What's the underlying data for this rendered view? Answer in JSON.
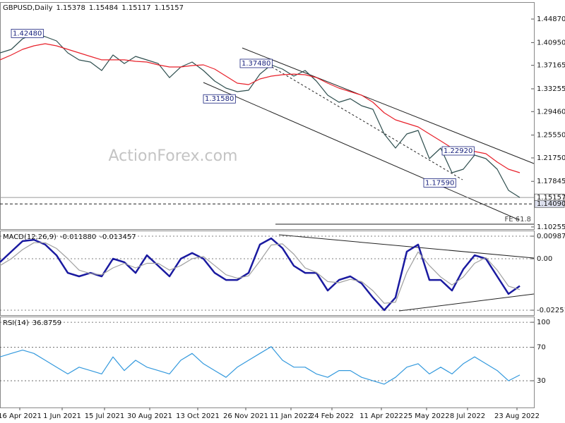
{
  "chart_data": [
    {
      "type": "line",
      "title": "GBPUSD,Daily",
      "ohlc": [
        {
          "value": 1.15378,
          "label": "1.15378"
        },
        {
          "value": 1.15484,
          "label": "1.15484"
        },
        {
          "value": 1.15117,
          "label": "1.15117"
        },
        {
          "value": 1.15157,
          "label": "1.15157"
        }
      ],
      "watermark": "ActionForex.com",
      "x": [
        0,
        8,
        16,
        24,
        32,
        40,
        48,
        56,
        64,
        72,
        80,
        88,
        96,
        104,
        112,
        120,
        128,
        136,
        144,
        152,
        160,
        168,
        176,
        184,
        192,
        200,
        208,
        216,
        224,
        232,
        240,
        248,
        256,
        264,
        272,
        280,
        288,
        296,
        304,
        312,
        320,
        328,
        336,
        344,
        352,
        360,
        368
      ],
      "xlim": [
        0,
        378
      ],
      "ylim": [
        1.0989,
        1.4769
      ],
      "yticks": [
        {
          "value": 1.4487,
          "label": "1.44870"
        },
        {
          "value": 1.4095,
          "label": "1.40950"
        },
        1.37165,
        1.33255,
        {
          "value": 1.2946,
          "label": "1.29460"
        },
        {
          "value": 1.2555,
          "label": "1.25550"
        },
        {
          "value": 1.2175,
          "label": "1.21750"
        },
        1.17845,
        1.10255
      ],
      "series": [
        {
          "color": "#2f4f4f",
          "values": [
            1.3924,
            1.3983,
            1.4158,
            1.4241,
            1.4194,
            1.4123,
            1.3924,
            1.3806,
            1.3771,
            1.363,
            1.3888,
            1.3747,
            1.3865,
            1.3806,
            1.3747,
            1.3512,
            1.3689,
            1.3771,
            1.363,
            1.3454,
            1.3337,
            1.3278,
            1.3302,
            1.3571,
            1.3724,
            1.3654,
            1.3536,
            1.363,
            1.3454,
            1.3219,
            1.3102,
            1.3161,
            1.3043,
            1.2985,
            1.2574,
            1.2339,
            1.2574,
            1.2632,
            1.2163,
            1.2339,
            1.1928,
            1.1987,
            1.2222,
            1.2163,
            1.1987,
            1.1635,
            1.1516
          ]
        },
        {
          "color": "#e8202a",
          "values": [
            1.3807,
            1.3888,
            1.3983,
            1.4041,
            1.4076,
            1.4041,
            1.3983,
            1.3924,
            1.3865,
            1.3807,
            1.3807,
            1.3807,
            1.3783,
            1.3771,
            1.3724,
            1.3689,
            1.3689,
            1.3712,
            1.3724,
            1.3654,
            1.3536,
            1.3419,
            1.3396,
            1.3489,
            1.3536,
            1.356,
            1.3571,
            1.356,
            1.3513,
            1.3419,
            1.3337,
            1.3278,
            1.3219,
            1.3102,
            1.2926,
            1.2809,
            1.275,
            1.2691,
            1.2574,
            1.2457,
            1.2339,
            1.2281,
            1.2281,
            1.2245,
            1.2105,
            1.1987,
            1.1928
          ]
        }
      ],
      "annotations": [
        {
          "x": 8,
          "value": 1.4248,
          "label": "1.42480"
        },
        {
          "x": 170,
          "value": 1.3748,
          "label": "1.37480"
        },
        {
          "x": 144,
          "value": 1.3158,
          "label": "1.31580"
        },
        {
          "x": 313,
          "value": 1.2292,
          "label": "1.22920"
        },
        {
          "x": 300,
          "value": 1.1759,
          "label": "1.17590"
        }
      ],
      "price_lines": [
        {
          "value": 1.15157,
          "label": "1.15157",
          "style": "solid"
        },
        {
          "value": 1.1409,
          "label": "1.14090",
          "style": "dashed"
        }
      ],
      "fe_line": {
        "x": 195,
        "value": 1.1071,
        "label": "FE 61.8"
      }
    },
    {
      "type": "line",
      "title": "MACD(12,26,9)",
      "readings": [
        {
          "value": -0.01188,
          "label": "-0.011880"
        },
        {
          "value": -0.013457,
          "label": "-0.013457"
        }
      ],
      "x": [
        0,
        8,
        16,
        24,
        32,
        40,
        48,
        56,
        64,
        72,
        80,
        88,
        96,
        104,
        112,
        120,
        128,
        136,
        144,
        152,
        160,
        168,
        176,
        184,
        192,
        200,
        208,
        216,
        224,
        232,
        240,
        248,
        256,
        264,
        272,
        280,
        288,
        296,
        304,
        312,
        320,
        328,
        336,
        344,
        352,
        360,
        368
      ],
      "xlim": [
        0,
        378
      ],
      "ylim": [
        -0.02468,
        0.01203
      ],
      "yticks": [
        0.009872,
        {
          "value": 0,
          "label": "0.00"
        },
        -0.022516
      ],
      "series": [
        {
          "color": "#1a1aa0",
          "values": [
            -0.0015,
            0.0031,
            0.0077,
            0.0083,
            0.0062,
            0.0015,
            -0.0062,
            -0.0077,
            -0.0062,
            -0.0077,
            0.0,
            -0.0015,
            -0.0062,
            0.0015,
            -0.0031,
            -0.0077,
            0.0,
            0.0025,
            0.0,
            -0.0062,
            -0.0093,
            -0.0093,
            -0.0062,
            0.0062,
            0.0089,
            0.0046,
            -0.0031,
            -0.0062,
            -0.0062,
            -0.0139,
            -0.0093,
            -0.0077,
            -0.0108,
            -0.017,
            -0.0225,
            -0.017,
            0.0031,
            0.0062,
            -0.0093,
            -0.0093,
            -0.0139,
            -0.0046,
            0.0015,
            0.0,
            -0.0077,
            -0.0154,
            -0.0119
          ]
        },
        {
          "color": "#a0a0a0",
          "values": [
            -0.003,
            0.0,
            0.004,
            0.007,
            0.007,
            0.0045,
            0.0,
            -0.005,
            -0.0065,
            -0.007,
            -0.004,
            -0.002,
            -0.004,
            -0.002,
            -0.002,
            -0.005,
            -0.003,
            0.0,
            0.001,
            -0.003,
            -0.007,
            -0.0085,
            -0.0075,
            -0.001,
            0.006,
            0.0065,
            0.002,
            -0.004,
            -0.006,
            -0.01,
            -0.0105,
            -0.009,
            -0.01,
            -0.014,
            -0.0195,
            -0.019,
            -0.006,
            0.003,
            -0.003,
            -0.008,
            -0.0115,
            -0.008,
            -0.002,
            0.0005,
            -0.005,
            -0.012,
            -0.0135
          ]
        }
      ]
    },
    {
      "type": "line",
      "title": "RSI(14)",
      "readings": [
        36.8759
      ],
      "x": [
        0,
        8,
        16,
        24,
        32,
        40,
        48,
        56,
        64,
        72,
        80,
        88,
        96,
        104,
        112,
        120,
        128,
        136,
        144,
        152,
        160,
        168,
        176,
        184,
        192,
        200,
        208,
        216,
        224,
        232,
        240,
        248,
        256,
        264,
        272,
        280,
        288,
        296,
        304,
        312,
        320,
        328,
        336,
        344,
        352,
        360,
        368
      ],
      "xlim": [
        0,
        378
      ],
      "ylim": [
        -2,
        106
      ],
      "yticks": [
        100,
        70,
        30
      ],
      "xticks": [
        {
          "value": 14,
          "label": "16 Apr 2021"
        },
        {
          "value": 44,
          "label": "1 Jun 2021"
        },
        {
          "value": 74,
          "label": "15 Jul 2021"
        },
        {
          "value": 106,
          "label": "30 Aug 2021"
        },
        {
          "value": 140,
          "label": "13 Oct 2021"
        },
        {
          "value": 174,
          "label": "26 Nov 2021"
        },
        {
          "value": 206,
          "label": "11 Jan 2022"
        },
        {
          "value": 235,
          "label": "24 Feb 2022"
        },
        {
          "value": 270,
          "label": "11 Apr 2022"
        },
        {
          "value": 302,
          "label": "25 May 2022"
        },
        {
          "value": 331,
          "label": "8 Jul 2022"
        },
        {
          "value": 366,
          "label": "23 Aug 2022"
        }
      ],
      "series": [
        {
          "color": "#3399dd",
          "values": [
            58.6,
            62.7,
            66.7,
            62.7,
            54.5,
            46.3,
            38.2,
            46.3,
            42.2,
            38.2,
            58.6,
            42.2,
            54.5,
            46.3,
            42.2,
            38.2,
            54.5,
            62.7,
            50.4,
            42.2,
            34.1,
            46.3,
            54.5,
            62.7,
            70.8,
            54.5,
            46.3,
            46.3,
            38.2,
            34.1,
            42.2,
            42.2,
            34.1,
            30.0,
            25.9,
            34.1,
            46.3,
            50.4,
            38.2,
            46.3,
            38.2,
            50.4,
            58.6,
            50.4,
            42.2,
            30.0,
            36.9
          ]
        }
      ]
    }
  ]
}
